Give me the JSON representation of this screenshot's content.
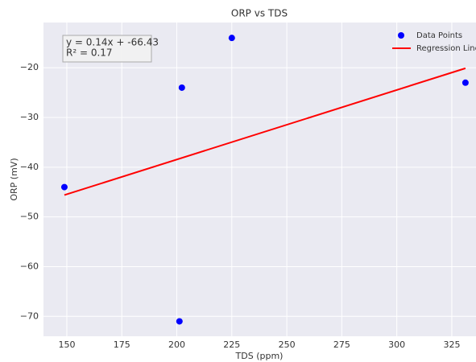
{
  "chart_data": {
    "type": "scatter",
    "title": "ORP vs TDS",
    "xlabel": "TDS (ppm)",
    "ylabel": "ORP (mV)",
    "annotation": [
      "y = 0.14x + -66.43",
      "R² = 0.17"
    ],
    "series": [
      {
        "name": "Data Points",
        "color": "#0000ff",
        "kind": "scatter",
        "x": [
          148.9,
          201.2,
          202.3,
          225,
          331.2
        ],
        "values": [
          -44,
          -71,
          -24,
          -14,
          -23
        ]
      },
      {
        "name": "Regression Line",
        "color": "#ff0000",
        "kind": "line",
        "x": [
          148.9,
          331.2
        ],
        "values": [
          -45.6,
          -20.1
        ]
      }
    ],
    "xlim": [
      139.4,
      336
    ],
    "ylim": [
      -74,
      -10.9
    ],
    "xticks": [
      150,
      175,
      200,
      225,
      250,
      275,
      300,
      325
    ],
    "yticks": [
      {
        "value": -70,
        "label": "−70"
      },
      {
        "value": -60,
        "label": "−60"
      },
      {
        "value": -50,
        "label": "−50"
      },
      {
        "value": -40,
        "label": "−40"
      },
      {
        "value": -30,
        "label": "−30"
      },
      {
        "value": -20,
        "label": "−20"
      }
    ],
    "grid": true,
    "legend": "upper right"
  }
}
